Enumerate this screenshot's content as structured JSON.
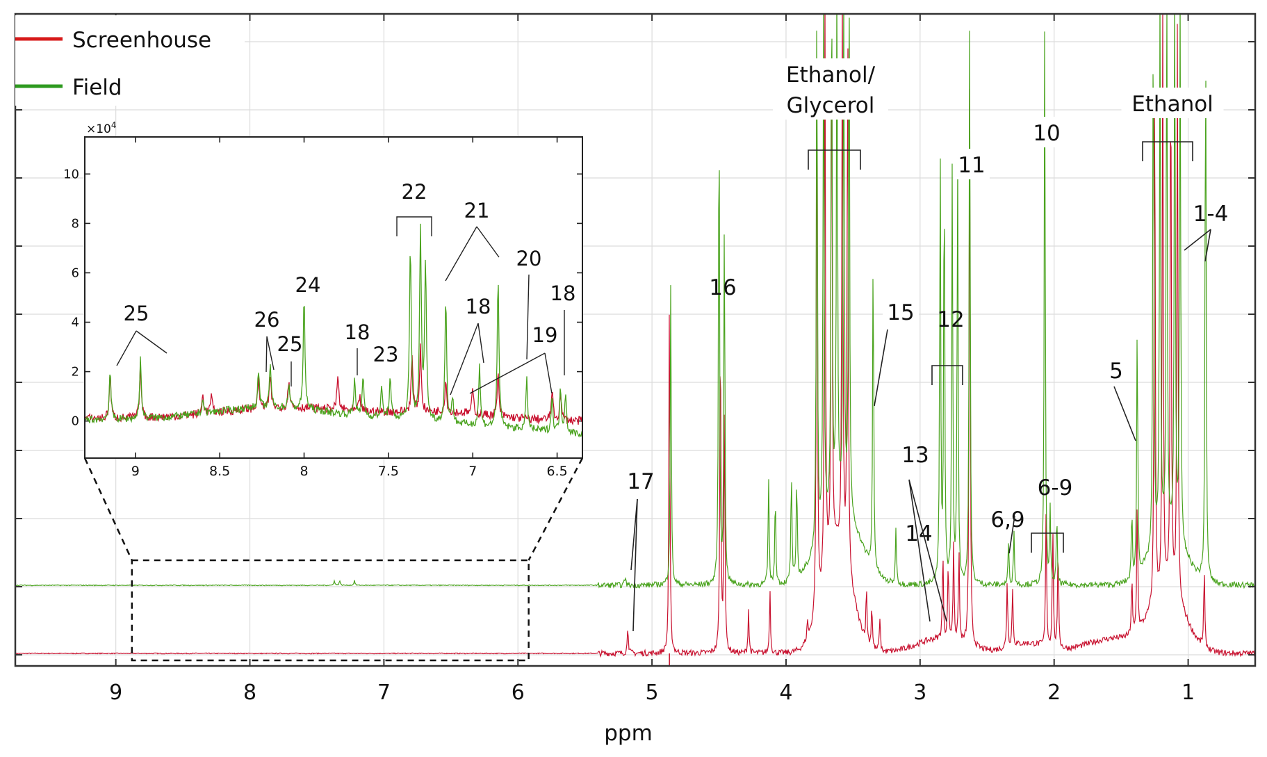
{
  "chart_data": {
    "type": "line",
    "xlabel": "ppm",
    "xlim": [
      9.75,
      0.5
    ],
    "x_ticks": [
      9,
      8,
      7,
      6,
      5,
      4,
      3,
      2,
      1
    ],
    "x_tick_labels": [
      "9",
      "8",
      "7",
      "6",
      "5",
      "4",
      "3",
      "2",
      "1"
    ],
    "grid": true,
    "legend_position": "top-left",
    "series": [
      {
        "name": "Screenhouse",
        "color": "#c8102e",
        "baseline": 0,
        "peaks": [
          [
            5.18,
            0.06
          ],
          [
            4.87,
            0.72
          ],
          [
            4.49,
            0.72
          ],
          [
            4.46,
            0.52
          ],
          [
            4.28,
            0.09
          ],
          [
            4.12,
            0.13
          ],
          [
            3.84,
            0.04
          ],
          [
            3.77,
            1.2
          ],
          [
            3.71,
            1.2
          ],
          [
            3.66,
            1.2
          ],
          [
            3.58,
            1.2
          ],
          [
            3.54,
            1.2
          ],
          [
            3.4,
            0.11
          ],
          [
            3.36,
            0.09
          ],
          [
            3.3,
            0.07
          ],
          [
            2.83,
            0.18
          ],
          [
            2.79,
            0.16
          ],
          [
            2.75,
            0.2
          ],
          [
            2.71,
            0.19
          ],
          [
            2.63,
            1.2
          ],
          [
            2.35,
            0.14
          ],
          [
            2.31,
            0.12
          ],
          [
            2.06,
            0.28
          ],
          [
            2.01,
            0.25
          ],
          [
            1.97,
            0.22
          ],
          [
            1.42,
            0.12
          ],
          [
            1.38,
            0.27
          ],
          [
            1.25,
            1.2
          ],
          [
            1.19,
            1.2
          ],
          [
            1.13,
            1.2
          ],
          [
            1.08,
            1.2
          ],
          [
            0.88,
            0.16
          ]
        ],
        "broad_humps": [
          [
            3.62,
            0.15,
            0.22
          ],
          [
            2.85,
            0.25,
            0.03
          ],
          [
            2.2,
            0.2,
            0.02
          ],
          [
            1.55,
            0.3,
            0.03
          ],
          [
            1.15,
            0.18,
            0.12
          ]
        ],
        "inset_values": [
          [
            9.15,
            1.8
          ],
          [
            8.97,
            2.1
          ],
          [
            8.6,
            0.8
          ],
          [
            8.55,
            0.7
          ],
          [
            8.27,
            1.2
          ],
          [
            8.2,
            1.3
          ],
          [
            8.09,
            1.2
          ],
          [
            7.8,
            1.4
          ],
          [
            7.67,
            0.6
          ],
          [
            7.36,
            2.2
          ],
          [
            7.31,
            2.6
          ],
          [
            7.16,
            1.3
          ],
          [
            7.0,
            1.0
          ],
          [
            6.85,
            1.7
          ],
          [
            6.53,
            1.2
          ],
          [
            6.48,
            1.1
          ]
        ]
      },
      {
        "name": "Field",
        "color": "#4aa31e",
        "baseline": 1,
        "peaks": [
          [
            7.37,
            0.01
          ],
          [
            7.33,
            0.01
          ],
          [
            7.22,
            0.01
          ],
          [
            5.2,
            0.02
          ],
          [
            4.86,
            0.63
          ],
          [
            4.5,
            1.07
          ],
          [
            4.46,
            0.77
          ],
          [
            4.13,
            0.22
          ],
          [
            4.08,
            0.19
          ],
          [
            3.96,
            0.23
          ],
          [
            3.92,
            0.21
          ],
          [
            3.77,
            1.2
          ],
          [
            3.72,
            1.2
          ],
          [
            3.66,
            1.2
          ],
          [
            3.62,
            1.2
          ],
          [
            3.57,
            1.2
          ],
          [
            3.53,
            1.2
          ],
          [
            3.35,
            0.68
          ],
          [
            3.18,
            0.12
          ],
          [
            2.85,
            0.91
          ],
          [
            2.82,
            0.89
          ],
          [
            2.76,
            0.87
          ],
          [
            2.72,
            0.9
          ],
          [
            2.63,
            1.2
          ],
          [
            2.34,
            0.09
          ],
          [
            2.3,
            0.11
          ],
          [
            2.07,
            1.2
          ],
          [
            2.03,
            0.15
          ],
          [
            1.98,
            0.14
          ],
          [
            1.42,
            0.14
          ],
          [
            1.38,
            0.53
          ],
          [
            1.26,
            1.2
          ],
          [
            1.21,
            1.2
          ],
          [
            1.16,
            1.2
          ],
          [
            1.1,
            1.2
          ],
          [
            1.06,
            1.2
          ],
          [
            0.87,
            1.2
          ]
        ],
        "broad_humps": [
          [
            3.6,
            0.2,
            0.16
          ],
          [
            1.15,
            0.18,
            0.1
          ]
        ],
        "inset_values": [
          [
            9.15,
            2.0
          ],
          [
            8.97,
            2.4
          ],
          [
            8.6,
            0.6
          ],
          [
            8.27,
            1.5
          ],
          [
            8.2,
            1.8
          ],
          [
            8.09,
            1.0
          ],
          [
            8.0,
            4.5
          ],
          [
            7.7,
            1.5
          ],
          [
            7.65,
            1.6
          ],
          [
            7.54,
            1.2
          ],
          [
            7.49,
            1.6
          ],
          [
            7.37,
            7.0
          ],
          [
            7.31,
            7.7
          ],
          [
            7.28,
            6.5
          ],
          [
            7.16,
            5.0
          ],
          [
            7.12,
            1.0
          ],
          [
            6.96,
            2.4
          ],
          [
            6.85,
            6.2
          ],
          [
            6.68,
            2.0
          ],
          [
            6.53,
            1.4
          ],
          [
            6.48,
            1.7
          ],
          [
            6.45,
            1.6
          ]
        ]
      }
    ],
    "annotations": [
      {
        "text": "Ethanol/",
        "x": 3.6
      },
      {
        "text": "Glycerol",
        "x": 3.6
      },
      {
        "text": "Ethanol",
        "x": 1.15
      },
      {
        "text": "17",
        "x": 5.17
      },
      {
        "text": "16",
        "x": 4.49
      },
      {
        "text": "15",
        "x": 3.35
      },
      {
        "text": "14",
        "x": 3.0
      },
      {
        "text": "13",
        "x": 2.8
      },
      {
        "text": "12",
        "x": 2.8
      },
      {
        "text": "11",
        "x": 2.63
      },
      {
        "text": "10",
        "x": 2.07
      },
      {
        "text": "6,9",
        "x": 2.32
      },
      {
        "text": "6-9",
        "x": 2.02
      },
      {
        "text": "5",
        "x": 1.38
      },
      {
        "text": "1-4",
        "x": 0.9
      }
    ],
    "inset": {
      "xlim": [
        9.3,
        6.35
      ],
      "ylim": [
        -1.5,
        11.5
      ],
      "x_ticks": [
        9,
        8.5,
        8,
        7.5,
        7,
        6.5
      ],
      "x_tick_labels": [
        "9",
        "8.5",
        "8",
        "7.5",
        "7",
        "6.5"
      ],
      "y_ticks": [
        0,
        2,
        4,
        6,
        8,
        10
      ],
      "y_tick_labels": [
        "0",
        "2",
        "4",
        "6",
        "8",
        "10"
      ],
      "y_multiplier": "×10",
      "y_multiplier_exp": "4",
      "zoom_region_x": [
        8.88,
        5.92
      ],
      "labels": [
        {
          "text": "25",
          "x": 9.05
        },
        {
          "text": "26",
          "x": 8.23
        },
        {
          "text": "25",
          "x": 8.1
        },
        {
          "text": "24",
          "x": 8.0
        },
        {
          "text": "18",
          "x": 7.67
        },
        {
          "text": "23",
          "x": 7.5
        },
        {
          "text": "22",
          "x": 7.33
        },
        {
          "text": "21",
          "x": 7.0
        },
        {
          "text": "18",
          "x": 7.05
        },
        {
          "text": "20",
          "x": 6.73
        },
        {
          "text": "19",
          "x": 6.58
        },
        {
          "text": "18",
          "x": 6.44
        }
      ]
    }
  }
}
